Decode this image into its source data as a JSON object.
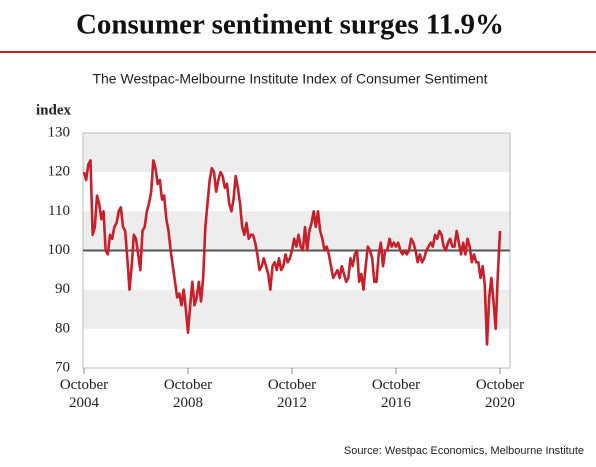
{
  "chart_data": {
    "type": "line",
    "title": "Consumer sentiment surges 11.9%",
    "subtitle": "The Westpac-Melbourne Institute Index of Consumer Sentiment",
    "y_label": "index",
    "source": "Source: Westpac Economics, Melbourne Institute",
    "x": [
      "2004-10",
      "2004-11",
      "2004-12",
      "2005-01",
      "2005-02",
      "2005-03",
      "2005-04",
      "2005-05",
      "2005-06",
      "2005-07",
      "2005-08",
      "2005-09",
      "2005-10",
      "2005-11",
      "2005-12",
      "2006-01",
      "2006-02",
      "2006-03",
      "2006-04",
      "2006-05",
      "2006-06",
      "2006-07",
      "2006-08",
      "2006-09",
      "2006-10",
      "2006-11",
      "2006-12",
      "2007-01",
      "2007-02",
      "2007-03",
      "2007-04",
      "2007-05",
      "2007-06",
      "2007-07",
      "2007-08",
      "2007-09",
      "2007-10",
      "2007-11",
      "2007-12",
      "2008-01",
      "2008-02",
      "2008-03",
      "2008-04",
      "2008-05",
      "2008-06",
      "2008-07",
      "2008-08",
      "2008-09",
      "2008-10",
      "2008-11",
      "2008-12",
      "2009-01",
      "2009-02",
      "2009-03",
      "2009-04",
      "2009-05",
      "2009-06",
      "2009-07",
      "2009-08",
      "2009-09",
      "2009-10",
      "2009-11",
      "2009-12",
      "2010-01",
      "2010-02",
      "2010-03",
      "2010-04",
      "2010-05",
      "2010-06",
      "2010-07",
      "2010-08",
      "2010-09",
      "2010-10",
      "2010-11",
      "2010-12",
      "2011-01",
      "2011-02",
      "2011-03",
      "2011-04",
      "2011-05",
      "2011-06",
      "2011-07",
      "2011-08",
      "2011-09",
      "2011-10",
      "2011-11",
      "2011-12",
      "2012-01",
      "2012-02",
      "2012-03",
      "2012-04",
      "2012-05",
      "2012-06",
      "2012-07",
      "2012-08",
      "2012-09",
      "2012-10",
      "2012-11",
      "2012-12",
      "2013-01",
      "2013-02",
      "2013-03",
      "2013-04",
      "2013-05",
      "2013-06",
      "2013-07",
      "2013-08",
      "2013-09",
      "2013-10",
      "2013-11",
      "2013-12",
      "2014-01",
      "2014-02",
      "2014-03",
      "2014-04",
      "2014-05",
      "2014-06",
      "2014-07",
      "2014-08",
      "2014-09",
      "2014-10",
      "2014-11",
      "2014-12",
      "2015-01",
      "2015-02",
      "2015-03",
      "2015-04",
      "2015-05",
      "2015-06",
      "2015-07",
      "2015-08",
      "2015-09",
      "2015-10",
      "2015-11",
      "2015-12",
      "2016-01",
      "2016-02",
      "2016-03",
      "2016-04",
      "2016-05",
      "2016-06",
      "2016-07",
      "2016-08",
      "2016-09",
      "2016-10",
      "2016-11",
      "2016-12",
      "2017-01",
      "2017-02",
      "2017-03",
      "2017-04",
      "2017-05",
      "2017-06",
      "2017-07",
      "2017-08",
      "2017-09",
      "2017-10",
      "2017-11",
      "2017-12",
      "2018-01",
      "2018-02",
      "2018-03",
      "2018-04",
      "2018-05",
      "2018-06",
      "2018-07",
      "2018-08",
      "2018-09",
      "2018-10",
      "2018-11",
      "2018-12",
      "2019-01",
      "2019-02",
      "2019-03",
      "2019-04",
      "2019-05",
      "2019-06",
      "2019-07",
      "2019-08",
      "2019-09",
      "2019-10",
      "2019-11",
      "2019-12",
      "2020-01",
      "2020-02",
      "2020-03",
      "2020-04",
      "2020-05",
      "2020-06",
      "2020-07",
      "2020-08",
      "2020-09",
      "2020-10"
    ],
    "series": [
      {
        "name": "Consumer sentiment",
        "color": "#c8202a",
        "values": [
          120,
          118,
          122,
          123,
          104,
          106,
          114,
          112,
          108,
          110,
          100,
          99,
          104,
          103,
          106,
          107,
          110,
          111,
          106,
          105,
          98,
          90,
          96,
          104,
          103,
          99,
          95,
          105,
          106,
          110,
          112,
          115,
          123,
          121,
          117,
          118,
          113,
          114,
          108,
          105,
          100,
          96,
          92,
          88,
          89,
          86,
          90,
          85,
          79,
          86,
          92,
          86,
          88,
          92,
          87,
          93,
          106,
          112,
          118,
          121,
          120,
          115,
          118,
          120,
          119,
          116,
          117,
          112,
          110,
          113,
          119,
          116,
          112,
          106,
          104,
          107,
          103,
          104,
          104,
          102,
          99,
          95,
          96,
          98,
          96,
          94,
          90,
          96,
          97,
          95,
          98,
          95,
          96,
          99,
          97,
          98,
          100,
          103,
          101,
          104,
          101,
          100,
          106,
          100,
          105,
          107,
          110,
          106,
          110,
          105,
          103,
          100,
          101,
          99,
          96,
          93,
          94,
          95,
          93,
          96,
          94,
          92,
          93,
          98,
          96,
          99,
          100,
          92,
          94,
          90,
          96,
          101,
          100,
          98,
          92,
          92,
          99,
          102,
          96,
          100,
          100,
          103,
          101,
          102,
          101,
          102,
          100,
          99,
          100,
          99,
          100,
          103,
          102,
          100,
          97,
          99,
          97,
          98,
          100,
          101,
          102,
          101,
          104,
          103,
          105,
          104,
          101,
          100,
          102,
          103,
          101,
          101,
          105,
          102,
          99,
          102,
          99,
          103,
          101,
          97,
          99,
          97,
          97,
          93,
          96,
          91,
          76,
          88,
          93,
          87,
          80,
          94,
          105
        ]
      }
    ],
    "xlim": [
      "2004-10",
      "2020-10"
    ],
    "xticks": [
      {
        "value": "2004-10",
        "label": "October 2004"
      },
      {
        "value": "2008-10",
        "label": "October 2008"
      },
      {
        "value": "2012-10",
        "label": "October 2012"
      },
      {
        "value": "2016-10",
        "label": "October 2016"
      },
      {
        "value": "2020-10",
        "label": "October 2020"
      }
    ],
    "ylim": [
      70,
      130
    ],
    "yticks": [
      70,
      80,
      90,
      100,
      110,
      120,
      130
    ],
    "reference_line": 100,
    "bands": true
  }
}
